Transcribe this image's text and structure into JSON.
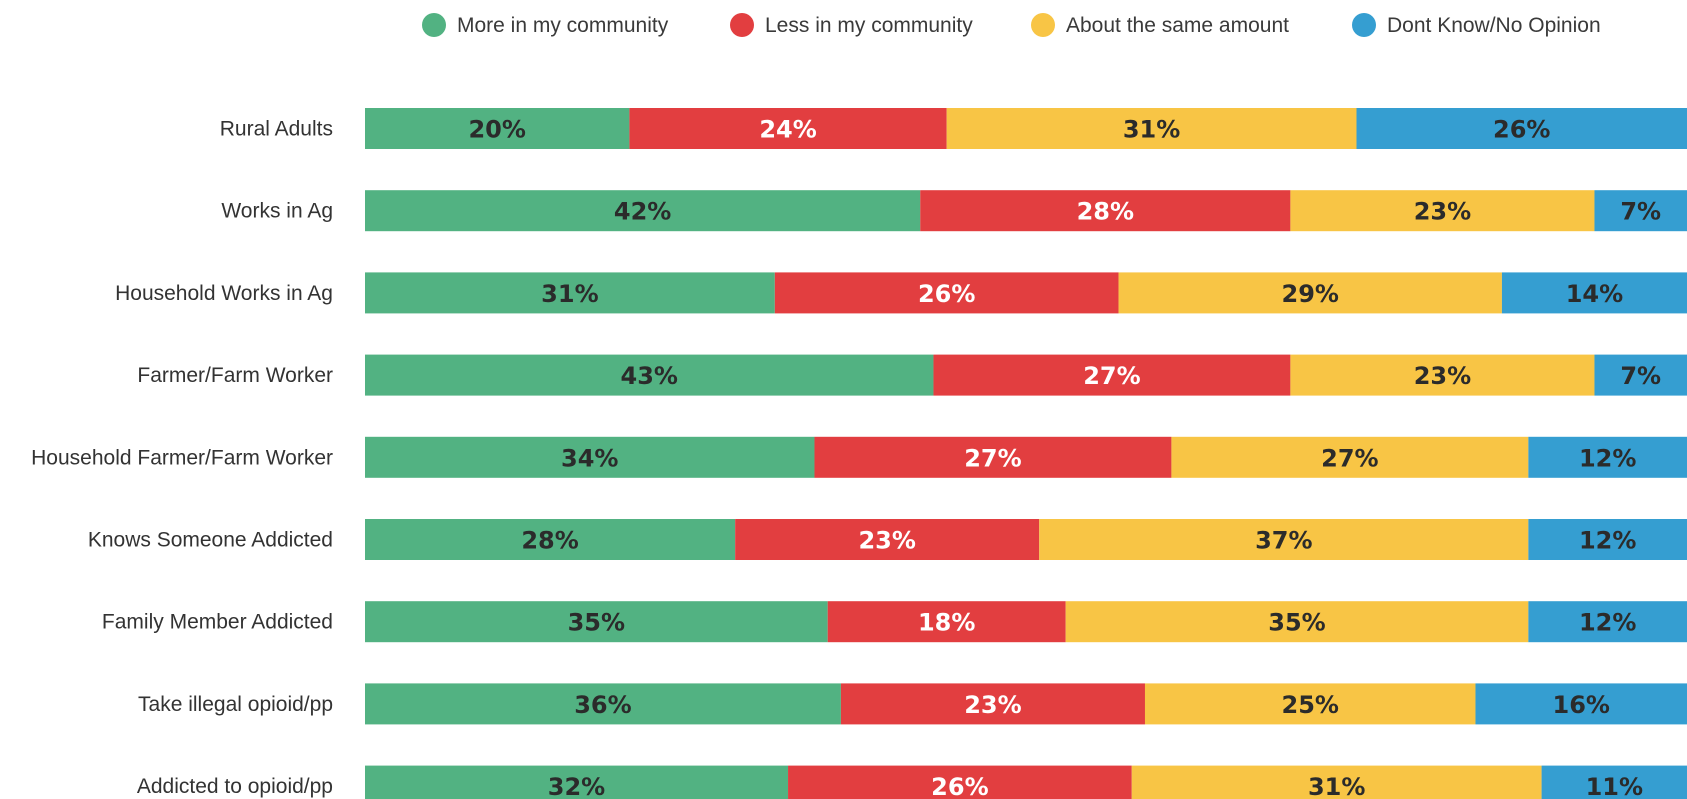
{
  "chart_data": {
    "type": "bar",
    "orientation": "horizontal",
    "stacked": true,
    "title": "",
    "xlabel": "",
    "ylabel": "",
    "xlim": [
      0,
      100
    ],
    "grid": false,
    "legend_position": "top",
    "categories": [
      "Rural Adults",
      "Works in Ag",
      "Household Works in Ag",
      "Farmer/Farm Worker",
      "Household Farmer/Farm Worker",
      "Knows Someone Addicted",
      "Family Member Addicted",
      "Take illegal opioid/pp",
      "Addicted to opioid/pp"
    ],
    "series": [
      {
        "name": "More in my community",
        "color": "#52b282",
        "label_color": "#2b2b2b",
        "values": [
          20,
          42,
          31,
          43,
          34,
          28,
          35,
          36,
          32
        ],
        "labels": [
          "20%",
          "42%",
          "31%",
          "43%",
          "34%",
          "28%",
          "35%",
          "36%",
          "32%"
        ]
      },
      {
        "name": "Less in my community",
        "color": "#e23e40",
        "label_color": "#ffffff",
        "values": [
          24,
          28,
          26,
          27,
          27,
          23,
          18,
          23,
          26
        ],
        "labels": [
          "24%",
          "28%",
          "26%",
          "27%",
          "27%",
          "23%",
          "18%",
          "23%",
          "26%"
        ]
      },
      {
        "name": "About the same amount",
        "color": "#f8c545",
        "label_color": "#2b2b2b",
        "values": [
          31,
          23,
          29,
          23,
          27,
          37,
          35,
          25,
          31
        ],
        "labels": [
          "31%",
          "23%",
          "29%",
          "23%",
          "27%",
          "37%",
          "35%",
          "25%",
          "31%"
        ]
      },
      {
        "name": "Dont Know/No Opinion",
        "color": "#359ed1",
        "label_color": "#2b2b2b",
        "values": [
          26,
          7,
          14,
          7,
          12,
          12,
          12,
          16,
          11
        ],
        "labels": [
          "26%",
          "7%",
          "14%",
          "7%",
          "12%",
          "12%",
          "12%",
          "16%",
          "11%"
        ]
      }
    ]
  }
}
